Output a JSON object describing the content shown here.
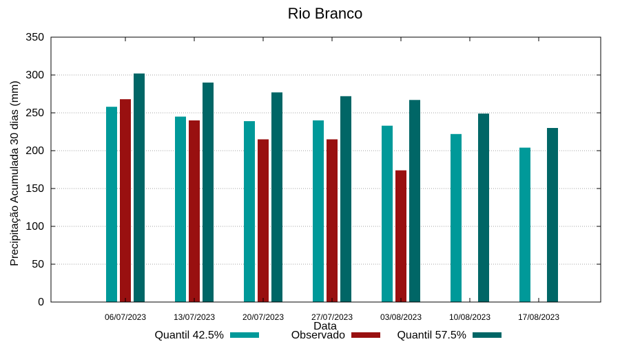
{
  "chart_data": {
    "type": "bar",
    "title": "Rio Branco",
    "xlabel": "Data",
    "ylabel": "Precipitação Acumulada 30 dias (mm)",
    "categories": [
      "06/07/2023",
      "13/07/2023",
      "20/07/2023",
      "27/07/2023",
      "03/08/2023",
      "10/08/2023",
      "17/08/2023"
    ],
    "yticks": [
      0,
      50,
      100,
      150,
      200,
      250,
      300,
      350
    ],
    "ylim": [
      0,
      350
    ],
    "grid": true,
    "legend_position": "bottom",
    "series": [
      {
        "name": "Quantil 42.5%",
        "color": "#009999",
        "values": [
          258,
          245,
          239,
          240,
          233,
          222,
          204
        ]
      },
      {
        "name": "Observado",
        "color": "#991010",
        "values": [
          268,
          240,
          215,
          215,
          174,
          null,
          null
        ]
      },
      {
        "name": "Quantil 57.5%",
        "color": "#006666",
        "values": [
          302,
          290,
          277,
          272,
          267,
          249,
          230
        ]
      }
    ]
  }
}
